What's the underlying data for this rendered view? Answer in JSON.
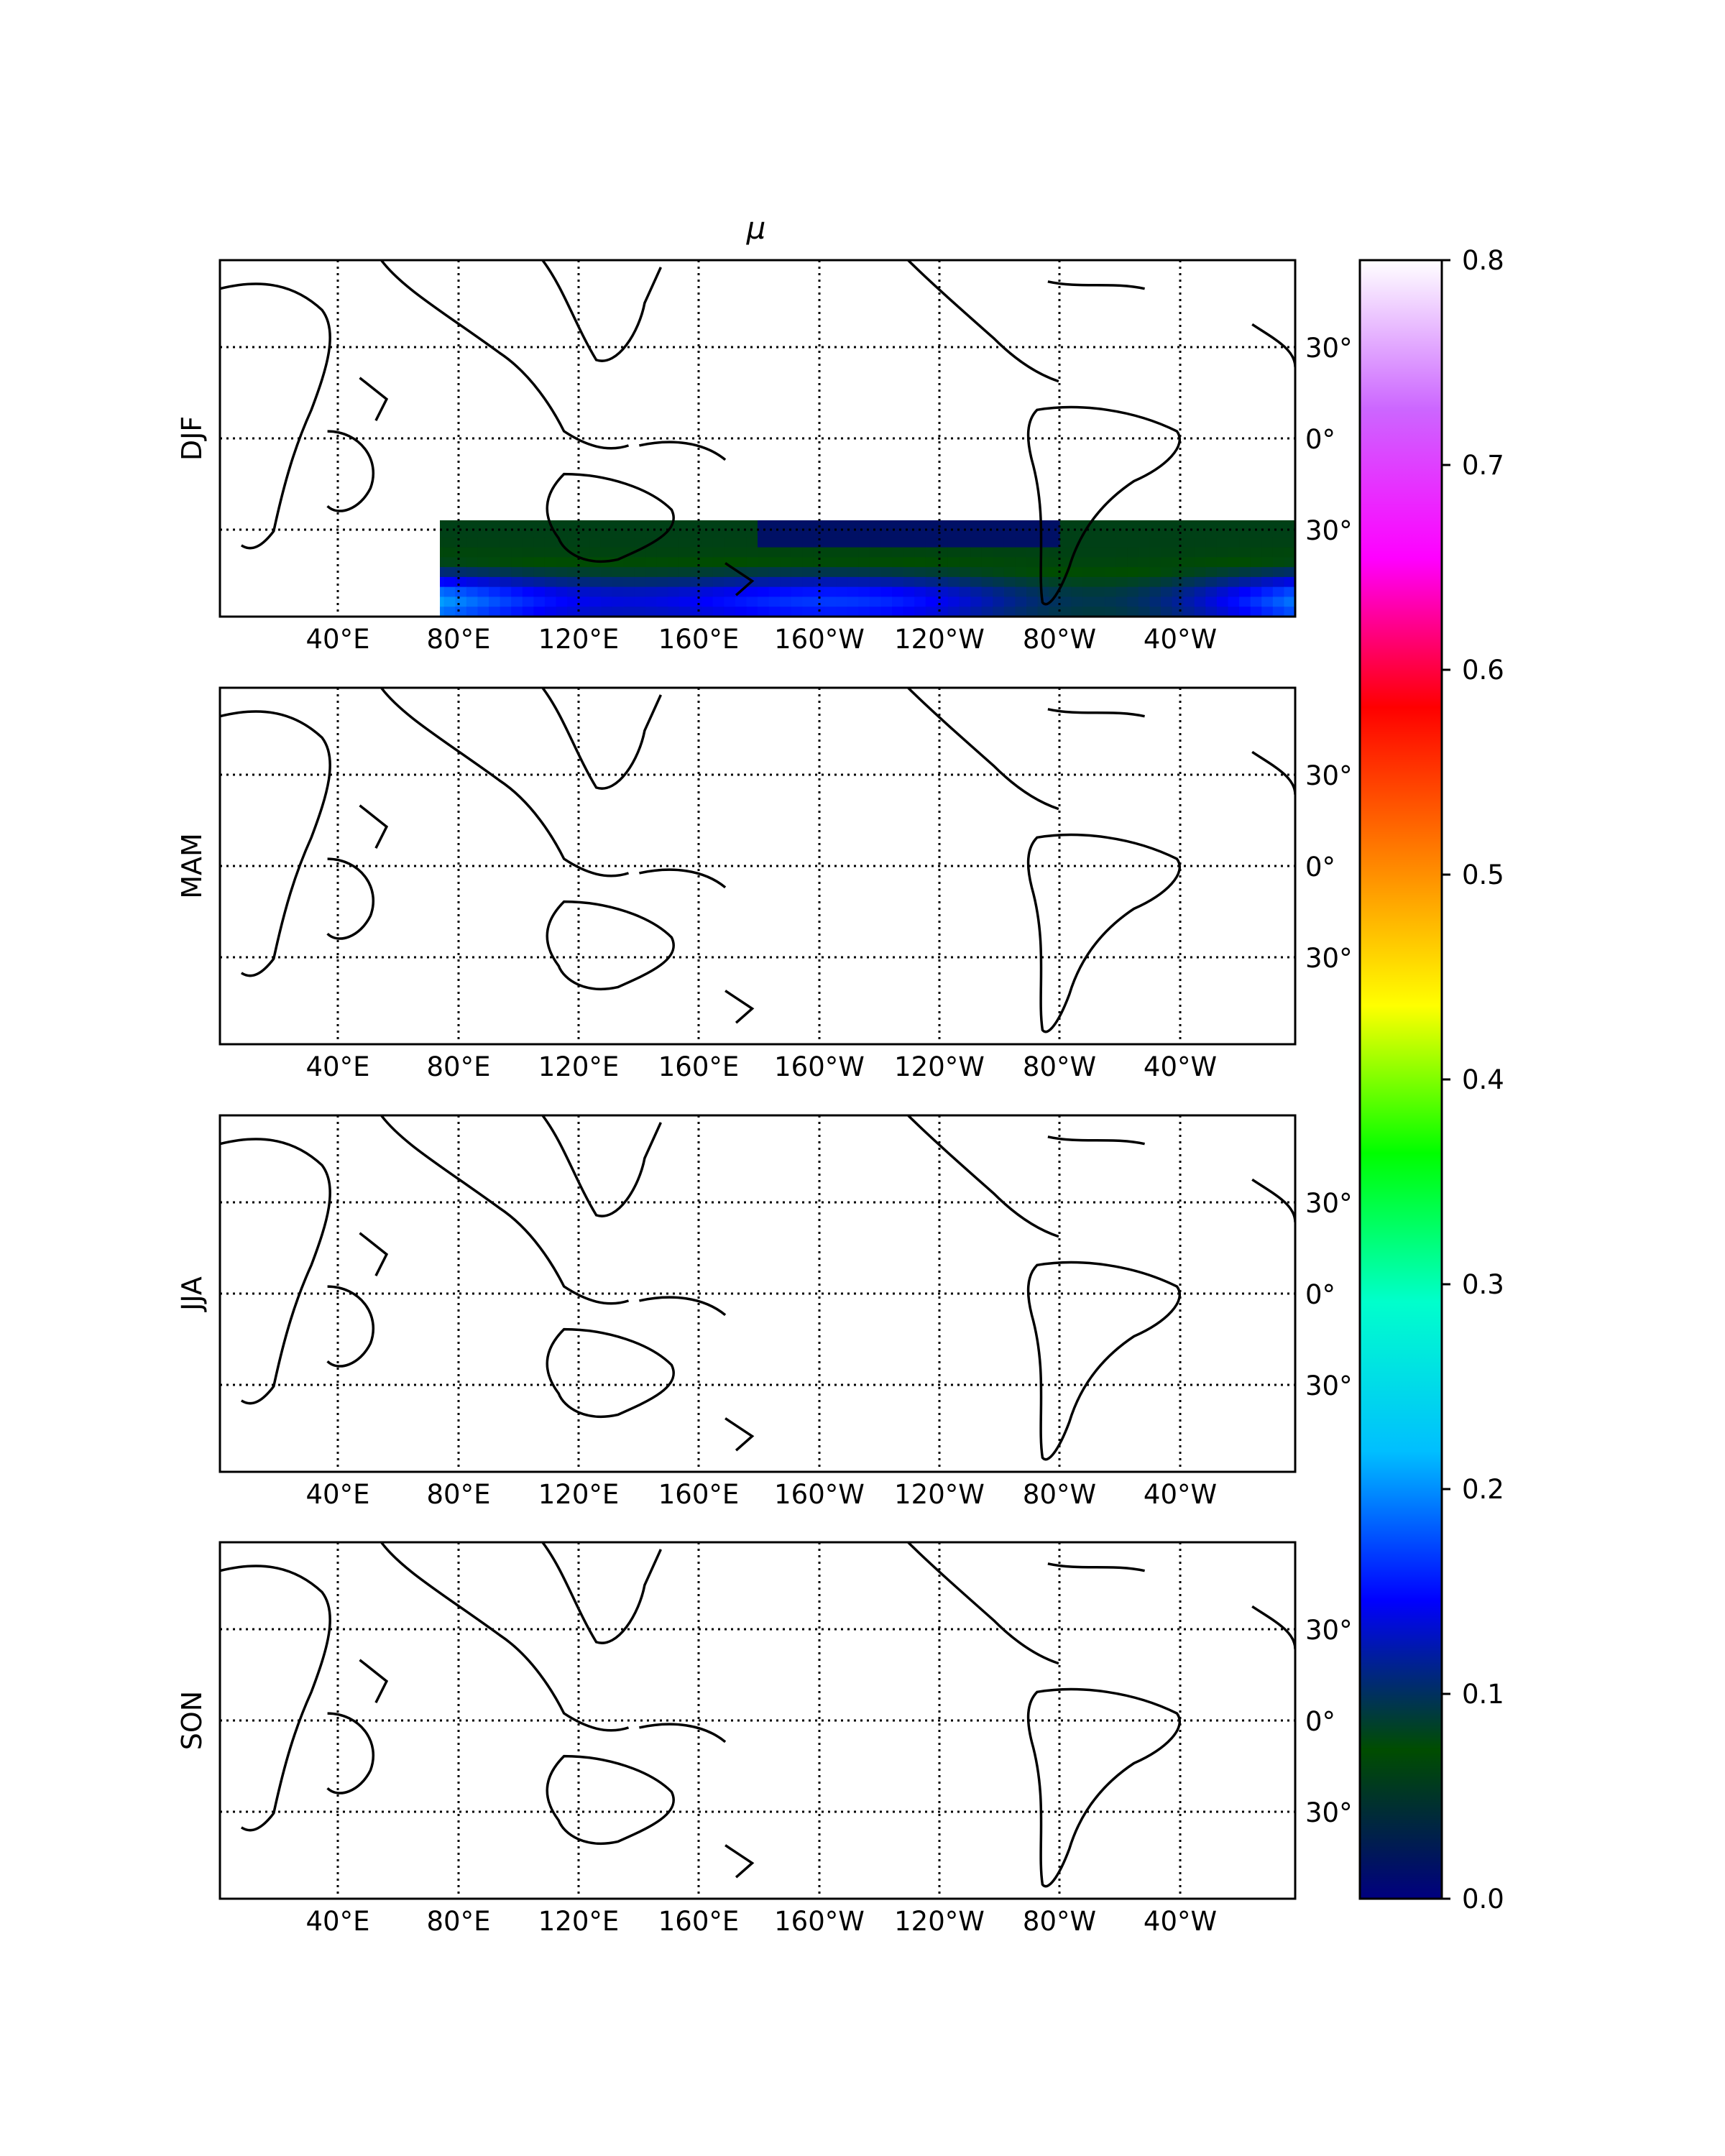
{
  "figure": {
    "title": "μ"
  },
  "panels": [
    {
      "id": "djf",
      "label": "DJF"
    },
    {
      "id": "mam",
      "label": "MAM"
    },
    {
      "id": "jja",
      "label": "JJA"
    },
    {
      "id": "son",
      "label": "SON"
    }
  ],
  "axes": {
    "x_ticks": [
      "40°E",
      "80°E",
      "120°E",
      "160°E",
      "160°W",
      "120°W",
      "80°W",
      "40°W"
    ],
    "y_ticks": [
      "30°",
      "0°",
      "30°"
    ]
  },
  "colorbar": {
    "ticks": [
      "0.0",
      "0.1",
      "0.2",
      "0.3",
      "0.4",
      "0.5",
      "0.6",
      "0.7",
      "0.8"
    ],
    "colormap": "gist_ncar",
    "stops": [
      "#000080",
      "#004d00",
      "#0000ff",
      "#00bfff",
      "#00ffcc",
      "#00ff00",
      "#ffff00",
      "#ff8000",
      "#ff0000",
      "#ff00ff",
      "#cc66ff",
      "#ffffff"
    ]
  },
  "chart_data": {
    "type": "heatmap",
    "title": "μ",
    "rows": [
      "DJF",
      "MAM",
      "JJA",
      "SON"
    ],
    "xlabel": "",
    "ylabel": "",
    "x_ticks": [
      "40°E",
      "80°E",
      "120°E",
      "160°E",
      "160°W",
      "120°W",
      "80°W",
      "40°W"
    ],
    "y_ticks": [
      "30°",
      "0°",
      "30°"
    ],
    "value_range": [
      0.0,
      0.8
    ],
    "grid": true
  }
}
